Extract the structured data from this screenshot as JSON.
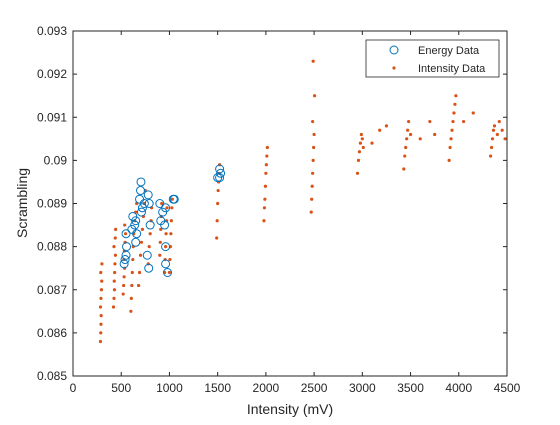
{
  "chart_data": {
    "type": "scatter",
    "title": "",
    "xlabel": "Intensity (mV)",
    "ylabel": "Scrambling",
    "xlim": [
      0,
      4500
    ],
    "ylim": [
      0.085,
      0.093
    ],
    "xticks": [
      0,
      500,
      1000,
      1500,
      2000,
      2500,
      3000,
      3500,
      4000,
      4500
    ],
    "xtick_labels": [
      "0",
      "500",
      "1000",
      "1500",
      "2000",
      "2500",
      "3000",
      "3500",
      "4000",
      "4500"
    ],
    "yticks": [
      0.085,
      0.086,
      0.087,
      0.088,
      0.089,
      0.09,
      0.091,
      0.092,
      0.093
    ],
    "ytick_labels": [
      "0.085",
      "0.086",
      "0.087",
      "0.088",
      "0.089",
      "0.09",
      "0.091",
      "0.092",
      "0.093"
    ],
    "grid": false,
    "legend_position": "top-right",
    "series": [
      {
        "name": "Energy Data",
        "marker": "circle-open",
        "color": "#0072BD",
        "points": [
          [
            530,
            0.0876
          ],
          [
            540,
            0.0877
          ],
          [
            550,
            0.0878
          ],
          [
            555,
            0.088
          ],
          [
            550,
            0.0883
          ],
          [
            610,
            0.0884
          ],
          [
            620,
            0.0887
          ],
          [
            640,
            0.0885
          ],
          [
            650,
            0.0881
          ],
          [
            660,
            0.0883
          ],
          [
            650,
            0.0886
          ],
          [
            690,
            0.0891
          ],
          [
            700,
            0.0893
          ],
          [
            710,
            0.0888
          ],
          [
            705,
            0.0895
          ],
          [
            720,
            0.0889
          ],
          [
            740,
            0.089
          ],
          [
            780,
            0.0892
          ],
          [
            790,
            0.089
          ],
          [
            800,
            0.0885
          ],
          [
            785,
            0.0875
          ],
          [
            770,
            0.0878
          ],
          [
            900,
            0.089
          ],
          [
            910,
            0.0886
          ],
          [
            930,
            0.0888
          ],
          [
            950,
            0.0885
          ],
          [
            960,
            0.088
          ],
          [
            960,
            0.0876
          ],
          [
            980,
            0.0874
          ],
          [
            960,
            0.0889
          ],
          [
            1040,
            0.0891
          ],
          [
            1050,
            0.0891
          ],
          [
            1500,
            0.0896
          ],
          [
            1520,
            0.0898
          ],
          [
            1520,
            0.0896
          ],
          [
            1530,
            0.0897
          ]
        ]
      },
      {
        "name": "Intensity Data",
        "marker": "dot",
        "color": "#D95319",
        "points": [
          [
            285,
            0.0858
          ],
          [
            288,
            0.086
          ],
          [
            290,
            0.0862
          ],
          [
            292,
            0.0864
          ],
          [
            285,
            0.0866
          ],
          [
            290,
            0.0868
          ],
          [
            295,
            0.087
          ],
          [
            298,
            0.0872
          ],
          [
            288,
            0.0874
          ],
          [
            300,
            0.0876
          ],
          [
            420,
            0.0866
          ],
          [
            425,
            0.0868
          ],
          [
            430,
            0.087
          ],
          [
            428,
            0.0872
          ],
          [
            432,
            0.0874
          ],
          [
            435,
            0.0876
          ],
          [
            440,
            0.0878
          ],
          [
            425,
            0.088
          ],
          [
            438,
            0.0882
          ],
          [
            442,
            0.0884
          ],
          [
            520,
            0.0869
          ],
          [
            525,
            0.0871
          ],
          [
            530,
            0.0873
          ],
          [
            535,
            0.0875
          ],
          [
            528,
            0.0877
          ],
          [
            532,
            0.0879
          ],
          [
            540,
            0.0881
          ],
          [
            545,
            0.0883
          ],
          [
            536,
            0.0885
          ],
          [
            600,
            0.0865
          ],
          [
            605,
            0.0868
          ],
          [
            610,
            0.0871
          ],
          [
            615,
            0.0874
          ],
          [
            620,
            0.0877
          ],
          [
            625,
            0.088
          ],
          [
            630,
            0.0883
          ],
          [
            640,
            0.0886
          ],
          [
            650,
            0.0888
          ],
          [
            660,
            0.089
          ],
          [
            680,
            0.0871
          ],
          [
            690,
            0.0874
          ],
          [
            700,
            0.0878
          ],
          [
            710,
            0.0881
          ],
          [
            720,
            0.0884
          ],
          [
            730,
            0.0887
          ],
          [
            740,
            0.089
          ],
          [
            750,
            0.0893
          ],
          [
            780,
            0.0876
          ],
          [
            790,
            0.088
          ],
          [
            800,
            0.0883
          ],
          [
            810,
            0.0886
          ],
          [
            815,
            0.0889
          ],
          [
            900,
            0.0878
          ],
          [
            905,
            0.0881
          ],
          [
            910,
            0.0884
          ],
          [
            915,
            0.0887
          ],
          [
            920,
            0.089
          ],
          [
            950,
            0.0874
          ],
          [
            955,
            0.0877
          ],
          [
            960,
            0.088
          ],
          [
            965,
            0.0883
          ],
          [
            970,
            0.0886
          ],
          [
            975,
            0.0889
          ],
          [
            1000,
            0.0874
          ],
          [
            1005,
            0.0877
          ],
          [
            1010,
            0.088
          ],
          [
            1015,
            0.0883
          ],
          [
            1020,
            0.0886
          ],
          [
            1025,
            0.0889
          ],
          [
            1030,
            0.0891
          ],
          [
            1490,
            0.0882
          ],
          [
            1495,
            0.0886
          ],
          [
            1500,
            0.089
          ],
          [
            1505,
            0.0893
          ],
          [
            1510,
            0.0895
          ],
          [
            1515,
            0.0897
          ],
          [
            1520,
            0.0899
          ],
          [
            1980,
            0.0886
          ],
          [
            1985,
            0.0889
          ],
          [
            1990,
            0.0891
          ],
          [
            1995,
            0.0894
          ],
          [
            2000,
            0.0897
          ],
          [
            2005,
            0.0899
          ],
          [
            2010,
            0.0901
          ],
          [
            2015,
            0.0903
          ],
          [
            2470,
            0.0888
          ],
          [
            2475,
            0.0891
          ],
          [
            2480,
            0.0894
          ],
          [
            2485,
            0.0897
          ],
          [
            2490,
            0.09
          ],
          [
            2495,
            0.0903
          ],
          [
            2500,
            0.0906
          ],
          [
            2485,
            0.0909
          ],
          [
            2505,
            0.0915
          ],
          [
            2490,
            0.0923
          ],
          [
            2950,
            0.0897
          ],
          [
            2960,
            0.09
          ],
          [
            2970,
            0.0902
          ],
          [
            2980,
            0.0904
          ],
          [
            2990,
            0.0906
          ],
          [
            3000,
            0.0905
          ],
          [
            3010,
            0.0903
          ],
          [
            3100,
            0.0904
          ],
          [
            3180,
            0.0907
          ],
          [
            3250,
            0.0908
          ],
          [
            3430,
            0.0898
          ],
          [
            3440,
            0.0901
          ],
          [
            3450,
            0.0903
          ],
          [
            3460,
            0.0905
          ],
          [
            3470,
            0.0907
          ],
          [
            3480,
            0.0909
          ],
          [
            3500,
            0.0906
          ],
          [
            3600,
            0.0905
          ],
          [
            3700,
            0.0909
          ],
          [
            3750,
            0.0906
          ],
          [
            3900,
            0.09
          ],
          [
            3910,
            0.0903
          ],
          [
            3920,
            0.0905
          ],
          [
            3930,
            0.0907
          ],
          [
            3940,
            0.0909
          ],
          [
            3950,
            0.0911
          ],
          [
            3960,
            0.0913
          ],
          [
            3970,
            0.0915
          ],
          [
            4050,
            0.0909
          ],
          [
            4150,
            0.0911
          ],
          [
            4330,
            0.0901
          ],
          [
            4340,
            0.0903
          ],
          [
            4350,
            0.0905
          ],
          [
            4360,
            0.0907
          ],
          [
            4370,
            0.0908
          ],
          [
            4400,
            0.0906
          ],
          [
            4420,
            0.0909
          ],
          [
            4450,
            0.0907
          ],
          [
            4480,
            0.0905
          ]
        ]
      }
    ]
  },
  "legend": {
    "energy_label": "Energy Data",
    "intensity_label": "Intensity Data"
  },
  "colors": {
    "energy": "#0072BD",
    "intensity": "#D95319",
    "axis": "#262626"
  }
}
